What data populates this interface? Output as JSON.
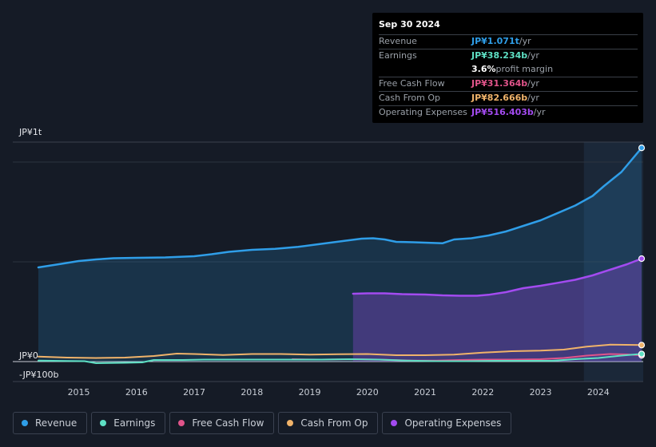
{
  "tooltip": {
    "date": "Sep 30 2024",
    "rows": [
      {
        "label": "Revenue",
        "value": "JP¥1.071t",
        "unit": " /yr",
        "color": "#2f9ee8"
      },
      {
        "label": "Earnings",
        "value": "JP¥38.234b",
        "unit": " /yr",
        "color": "#5ee0c4"
      },
      {
        "label": "",
        "value": "3.6%",
        "unit": " profit margin",
        "color": "#ffffff"
      },
      {
        "label": "Free Cash Flow",
        "value": "JP¥31.364b",
        "unit": " /yr",
        "color": "#e0548a"
      },
      {
        "label": "Cash From Op",
        "value": "JP¥82.666b",
        "unit": " /yr",
        "color": "#f0b36a"
      },
      {
        "label": "Operating Expenses",
        "value": "JP¥516.403b",
        "unit": " /yr",
        "color": "#a34bf0"
      }
    ]
  },
  "legend": [
    {
      "label": "Revenue",
      "color": "#2f9ee8"
    },
    {
      "label": "Earnings",
      "color": "#5ee0c4"
    },
    {
      "label": "Free Cash Flow",
      "color": "#e0548a"
    },
    {
      "label": "Cash From Op",
      "color": "#f0b36a"
    },
    {
      "label": "Operating Expenses",
      "color": "#a34bf0"
    }
  ],
  "chart_data": {
    "type": "area",
    "units": "JP¥ billions",
    "y_tick_labels": [
      {
        "label": "JP¥1t",
        "value": 1000
      },
      {
        "label": "JP¥0",
        "value": 0
      },
      {
        "label": "-JP¥100b",
        "value": -100
      }
    ],
    "ylim": [
      -100,
      1100
    ],
    "xlim": [
      2014.3,
      2024.75
    ],
    "x_ticks": [
      "2015",
      "2016",
      "2017",
      "2018",
      "2019",
      "2020",
      "2021",
      "2022",
      "2023",
      "2024"
    ],
    "highlight_start": 2023.75,
    "series": [
      {
        "name": "Revenue",
        "color": "#2f9ee8",
        "fill": true,
        "points": [
          [
            2014.3,
            472
          ],
          [
            2014.7,
            490
          ],
          [
            2015.0,
            504
          ],
          [
            2015.3,
            512
          ],
          [
            2015.6,
            518
          ],
          [
            2016.0,
            520
          ],
          [
            2016.5,
            522
          ],
          [
            2017.0,
            528
          ],
          [
            2017.3,
            538
          ],
          [
            2017.6,
            550
          ],
          [
            2018.0,
            560
          ],
          [
            2018.4,
            565
          ],
          [
            2018.8,
            575
          ],
          [
            2019.2,
            590
          ],
          [
            2019.6,
            605
          ],
          [
            2019.9,
            616
          ],
          [
            2020.1,
            618
          ],
          [
            2020.3,
            612
          ],
          [
            2020.5,
            600
          ],
          [
            2020.8,
            598
          ],
          [
            2021.0,
            596
          ],
          [
            2021.3,
            593
          ],
          [
            2021.5,
            612
          ],
          [
            2021.8,
            618
          ],
          [
            2022.1,
            632
          ],
          [
            2022.4,
            652
          ],
          [
            2022.7,
            680
          ],
          [
            2023.0,
            708
          ],
          [
            2023.3,
            745
          ],
          [
            2023.6,
            782
          ],
          [
            2023.9,
            830
          ],
          [
            2024.1,
            880
          ],
          [
            2024.4,
            950
          ],
          [
            2024.75,
            1071
          ]
        ]
      },
      {
        "name": "Operating Expenses",
        "color": "#a34bf0",
        "fill": true,
        "points": [
          [
            2019.75,
            340
          ],
          [
            2020.0,
            342
          ],
          [
            2020.3,
            342
          ],
          [
            2020.6,
            338
          ],
          [
            2021.0,
            336
          ],
          [
            2021.3,
            332
          ],
          [
            2021.6,
            330
          ],
          [
            2021.9,
            330
          ],
          [
            2022.1,
            335
          ],
          [
            2022.4,
            348
          ],
          [
            2022.7,
            368
          ],
          [
            2023.0,
            380
          ],
          [
            2023.3,
            395
          ],
          [
            2023.6,
            410
          ],
          [
            2023.9,
            432
          ],
          [
            2024.2,
            460
          ],
          [
            2024.5,
            488
          ],
          [
            2024.75,
            516
          ]
        ]
      },
      {
        "name": "Cash From Op",
        "color": "#f0b36a",
        "fill": false,
        "points": [
          [
            2014.3,
            25
          ],
          [
            2014.8,
            20
          ],
          [
            2015.3,
            18
          ],
          [
            2015.8,
            20
          ],
          [
            2016.3,
            28
          ],
          [
            2016.7,
            40
          ],
          [
            2017.0,
            38
          ],
          [
            2017.5,
            33
          ],
          [
            2018.0,
            38
          ],
          [
            2018.5,
            38
          ],
          [
            2019.0,
            35
          ],
          [
            2019.5,
            37
          ],
          [
            2020.0,
            38
          ],
          [
            2020.5,
            32
          ],
          [
            2021.0,
            32
          ],
          [
            2021.5,
            35
          ],
          [
            2022.0,
            45
          ],
          [
            2022.5,
            52
          ],
          [
            2023.0,
            55
          ],
          [
            2023.4,
            60
          ],
          [
            2023.8,
            75
          ],
          [
            2024.2,
            85
          ],
          [
            2024.75,
            82.666
          ]
        ]
      },
      {
        "name": "Free Cash Flow",
        "color": "#e0548a",
        "fill": false,
        "points": [
          [
            2018.7,
            12
          ],
          [
            2019.2,
            10
          ],
          [
            2019.8,
            12
          ],
          [
            2020.2,
            10
          ],
          [
            2020.8,
            5
          ],
          [
            2021.2,
            5
          ],
          [
            2021.6,
            8
          ],
          [
            2022.0,
            10
          ],
          [
            2022.5,
            10
          ],
          [
            2023.0,
            12
          ],
          [
            2023.4,
            18
          ],
          [
            2023.8,
            30
          ],
          [
            2024.2,
            38
          ],
          [
            2024.5,
            36
          ],
          [
            2024.75,
            31.364
          ]
        ]
      },
      {
        "name": "Earnings",
        "color": "#5ee0c4",
        "fill": false,
        "points": [
          [
            2014.3,
            5
          ],
          [
            2014.8,
            3
          ],
          [
            2015.1,
            2
          ],
          [
            2015.3,
            -8
          ],
          [
            2015.8,
            -6
          ],
          [
            2016.1,
            -4
          ],
          [
            2016.3,
            8
          ],
          [
            2016.8,
            8
          ],
          [
            2017.2,
            10
          ],
          [
            2017.7,
            10
          ],
          [
            2018.2,
            10
          ],
          [
            2018.7,
            10
          ],
          [
            2019.2,
            10
          ],
          [
            2019.7,
            12
          ],
          [
            2020.2,
            10
          ],
          [
            2020.7,
            5
          ],
          [
            2021.2,
            2
          ],
          [
            2021.7,
            2
          ],
          [
            2022.2,
            4
          ],
          [
            2022.7,
            4
          ],
          [
            2023.2,
            4
          ],
          [
            2023.6,
            12
          ],
          [
            2024.0,
            18
          ],
          [
            2024.4,
            30
          ],
          [
            2024.75,
            38.234
          ]
        ]
      }
    ]
  }
}
